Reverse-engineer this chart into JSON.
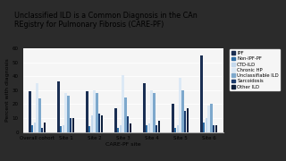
{
  "title": "Unclassified ILD is a Common Diagnosis in the CAn\nREgistry for Pulmonary Fibrosis (CARE-PF)",
  "xlabel": "CARE-PF site",
  "ylabel": "Percent with diagnosis",
  "ylim": [
    0,
    60
  ],
  "yticks": [
    0,
    10,
    20,
    30,
    40,
    50,
    60
  ],
  "categories": [
    "Overall cohort",
    "Site 1",
    "Site 2",
    "Site 3",
    "Site 4",
    "Site 5",
    "Site 6"
  ],
  "series": {
    "IPF": [
      29,
      36,
      29,
      17,
      35,
      20,
      55
    ],
    "Non-IPF-PF": [
      5,
      4,
      4,
      3,
      5,
      3,
      7
    ],
    "CTD-ILD": [
      7,
      5,
      12,
      5,
      6,
      5,
      10
    ],
    "Chronic HP": [
      35,
      28,
      30,
      41,
      30,
      39,
      19
    ],
    "Unclassifiable ILD": [
      24,
      26,
      28,
      25,
      28,
      30,
      20
    ],
    "Sarcoidosis": [
      3,
      10,
      13,
      11,
      5,
      15,
      5
    ],
    "Other ILD": [
      7,
      10,
      12,
      6,
      8,
      17,
      5
    ]
  },
  "colors": {
    "IPF": "#1a2e52",
    "Non-IPF-PF": "#2e6ca4",
    "CTD-ILD": "#c5d9ed",
    "Chronic HP": "#dce9f5",
    "Unclassifiable ILD": "#7da8cc",
    "Sarcoidosis": "#1a3a6b",
    "Other ILD": "#0d1f3c"
  },
  "outer_bg": "#2b2b2b",
  "chart_bg": "#f5f5f5",
  "title_fontsize": 5.8,
  "axis_fontsize": 4.5,
  "tick_fontsize": 4.0,
  "legend_fontsize": 3.8
}
